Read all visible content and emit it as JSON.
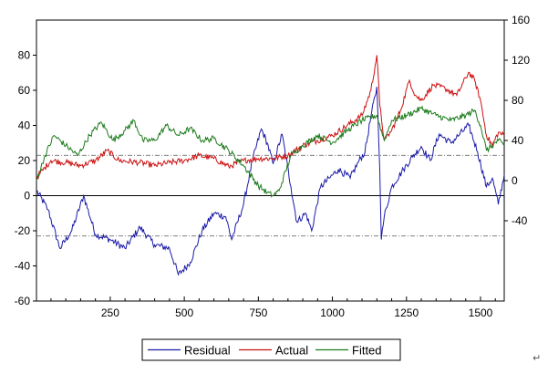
{
  "chart_data": {
    "type": "line",
    "x": {
      "range": [
        1,
        1580
      ],
      "ticks": [
        250,
        500,
        750,
        1000,
        1250,
        1500
      ]
    },
    "left_axis": {
      "range": [
        -60,
        100
      ],
      "tick_values": [
        -60,
        -40,
        -20,
        0,
        20,
        40,
        60,
        80
      ],
      "tick_labels": [
        "-60",
        "-40",
        "-20",
        "0",
        "20",
        "40",
        "60",
        "80"
      ]
    },
    "right_axis": {
      "range": [
        -120,
        160
      ],
      "tick_values": [
        -40,
        0,
        40,
        80,
        120,
        160
      ],
      "tick_labels": [
        "-40",
        "0",
        "40",
        "80",
        "120",
        "160"
      ]
    },
    "reference_lines": {
      "zero": 0,
      "bands": [
        23,
        -23
      ]
    },
    "series": [
      {
        "name": "Residual",
        "axis": "left",
        "color": "#1a1aa8",
        "x": [
          1,
          40,
          80,
          120,
          160,
          200,
          250,
          300,
          350,
          400,
          450,
          480,
          520,
          560,
          600,
          640,
          660,
          700,
          730,
          760,
          780,
          800,
          830,
          860,
          880,
          910,
          930,
          960,
          990,
          1020,
          1060,
          1090,
          1110,
          1130,
          1150,
          1160,
          1165,
          1175,
          1200,
          1240,
          1270,
          1300,
          1330,
          1360,
          1400,
          1430,
          1460,
          1490,
          1520,
          1540,
          1560,
          1580
        ],
        "values": [
          3,
          -8,
          -30,
          -20,
          0,
          -22,
          -25,
          -30,
          -18,
          -28,
          -30,
          -45,
          -38,
          -20,
          -10,
          -12,
          -25,
          -5,
          20,
          38,
          30,
          18,
          35,
          5,
          -15,
          -10,
          -20,
          5,
          10,
          15,
          10,
          20,
          25,
          45,
          62,
          15,
          -25,
          -12,
          5,
          15,
          22,
          28,
          20,
          35,
          30,
          35,
          40,
          25,
          5,
          10,
          -5,
          12
        ]
      },
      {
        "name": "Actual",
        "axis": "right",
        "color": "#cc1111",
        "x": [
          1,
          50,
          100,
          150,
          200,
          240,
          280,
          350,
          400,
          450,
          500,
          550,
          600,
          650,
          700,
          750,
          800,
          850,
          900,
          950,
          1000,
          1050,
          1100,
          1130,
          1150,
          1160,
          1175,
          1200,
          1230,
          1260,
          1280,
          1300,
          1340,
          1380,
          1420,
          1460,
          1480,
          1500,
          1520,
          1540,
          1560,
          1580
        ],
        "values": [
          3,
          20,
          18,
          15,
          20,
          30,
          20,
          18,
          15,
          18,
          20,
          25,
          22,
          14,
          20,
          22,
          22,
          25,
          35,
          40,
          45,
          55,
          65,
          90,
          125,
          75,
          40,
          50,
          70,
          100,
          85,
          80,
          95,
          92,
          85,
          108,
          100,
          80,
          45,
          35,
          48,
          45
        ]
      },
      {
        "name": "Fitted",
        "axis": "right",
        "color": "#1b7a1b",
        "x": [
          1,
          30,
          60,
          100,
          140,
          180,
          220,
          260,
          300,
          330,
          360,
          400,
          440,
          480,
          520,
          560,
          600,
          650,
          700,
          750,
          780,
          800,
          820,
          860,
          900,
          950,
          1000,
          1050,
          1100,
          1150,
          1175,
          1200,
          1250,
          1300,
          1350,
          1400,
          1450,
          1480,
          1500,
          1520,
          1560,
          1580
        ],
        "values": [
          0,
          25,
          45,
          35,
          25,
          45,
          58,
          40,
          50,
          60,
          40,
          40,
          55,
          45,
          52,
          40,
          42,
          30,
          15,
          -5,
          -12,
          -15,
          -10,
          25,
          35,
          45,
          38,
          50,
          60,
          65,
          40,
          60,
          65,
          72,
          65,
          60,
          65,
          70,
          55,
          30,
          40,
          35
        ]
      }
    ],
    "legend": {
      "placement": "bottom-center",
      "entries": [
        "Residual",
        "Actual",
        "Fitted"
      ]
    },
    "grid": false
  },
  "decor": {
    "return_mark": "↵"
  }
}
